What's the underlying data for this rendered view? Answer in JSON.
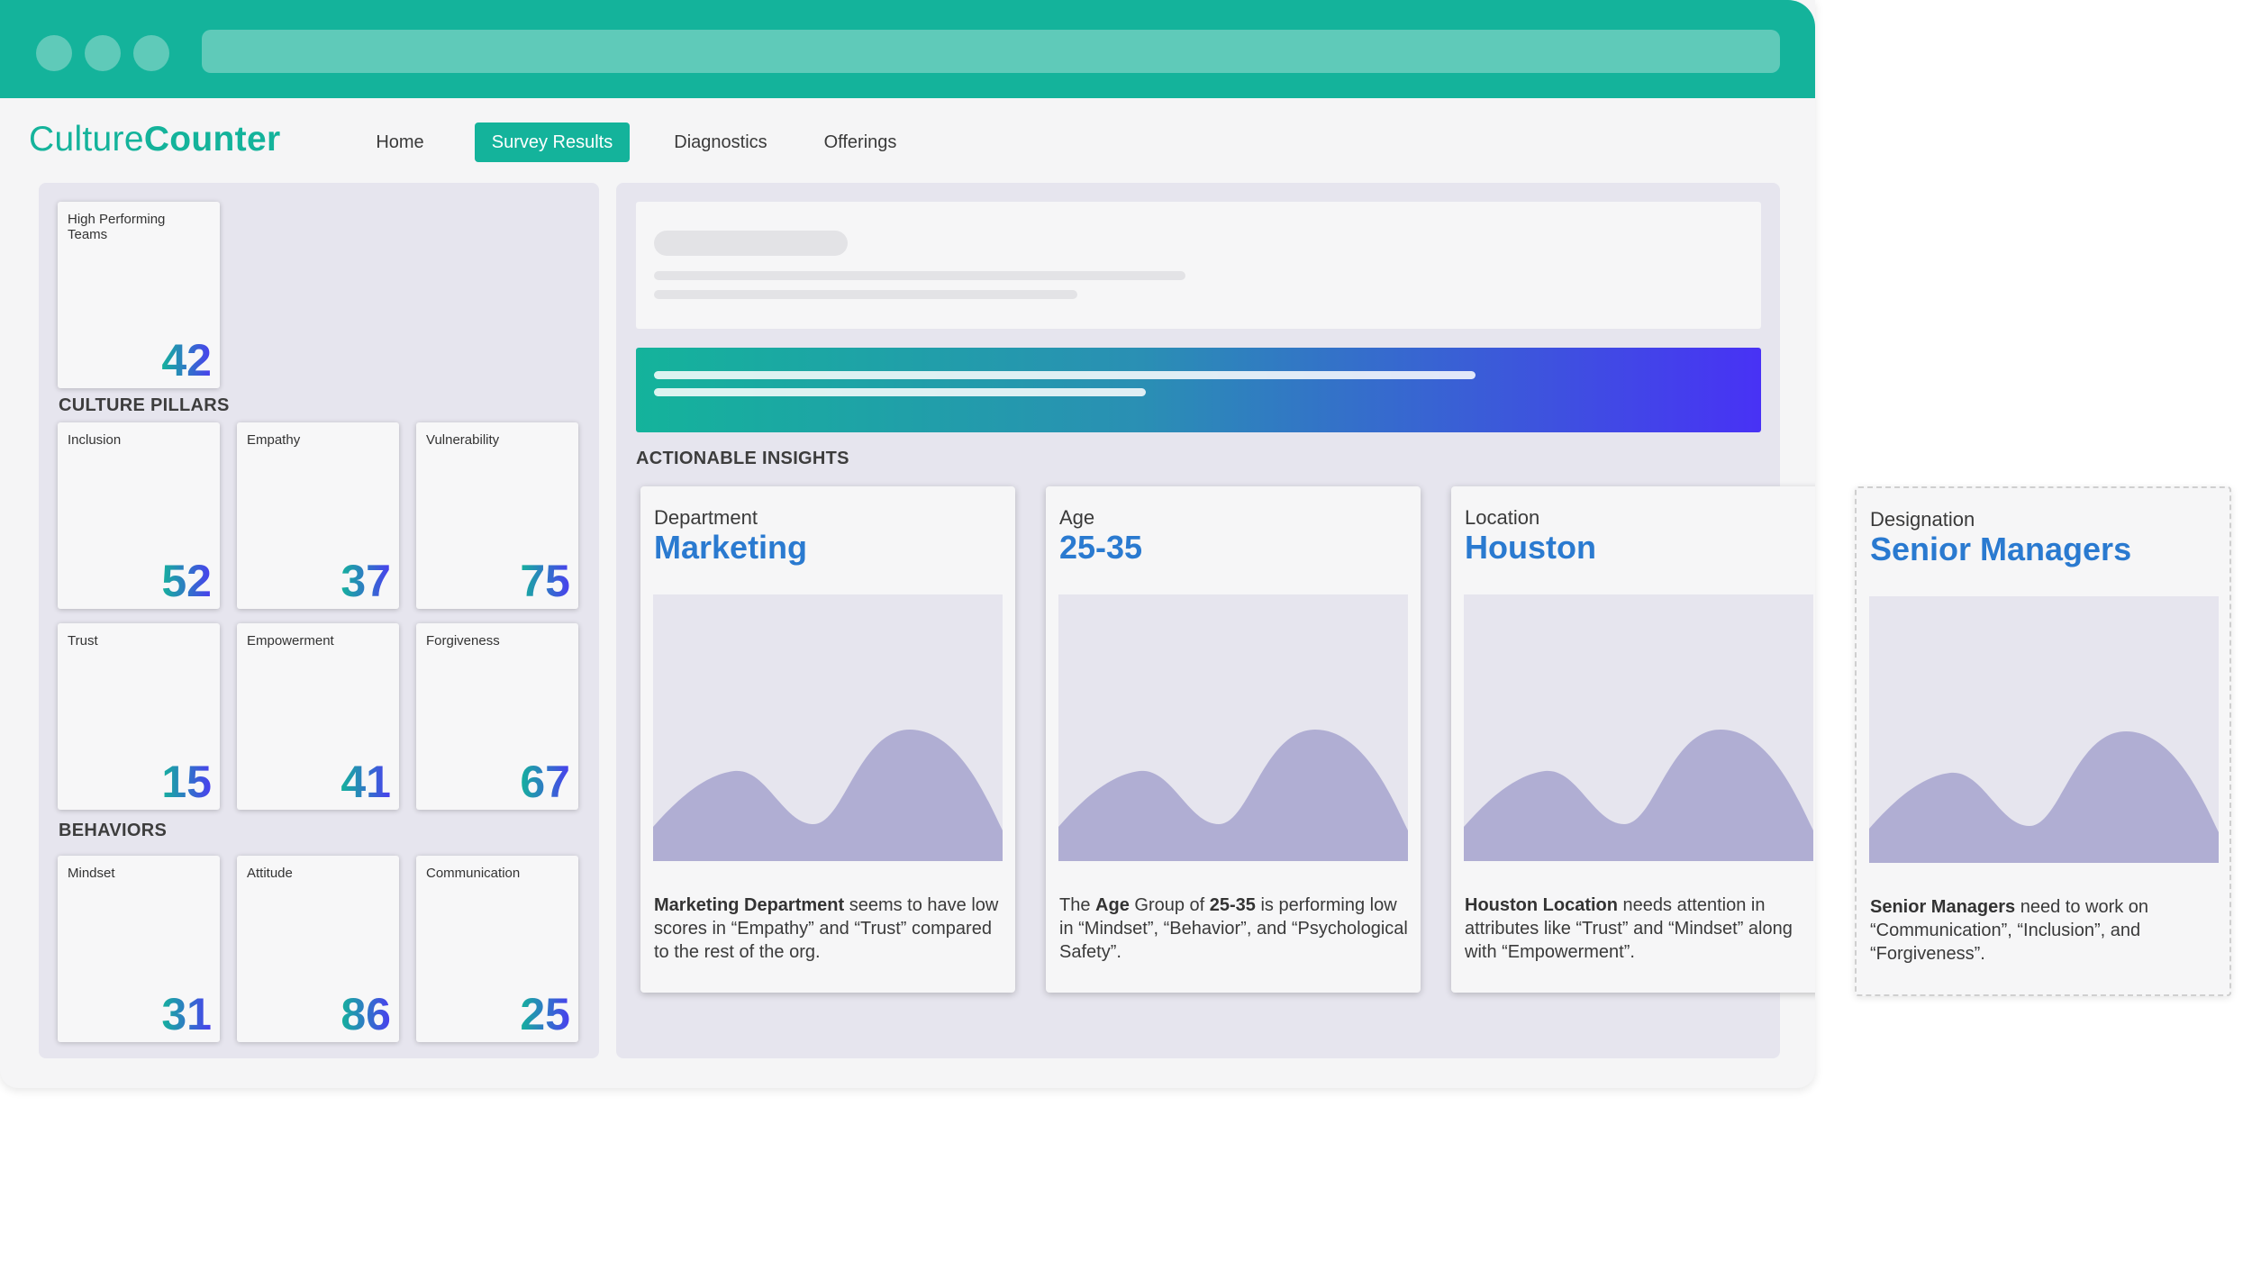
{
  "app": {
    "name_part1": "Culture",
    "name_part2": "Counter"
  },
  "nav": {
    "items": [
      "Home",
      "Survey Results",
      "Diagnostics",
      "Offerings"
    ],
    "active": "Survey Results"
  },
  "summary": {
    "label": "High Performing Teams",
    "value": "42"
  },
  "culture_pillars": {
    "title": "CULTURE PILLARS",
    "items": [
      {
        "label": "Inclusion",
        "value": "52"
      },
      {
        "label": "Empathy",
        "value": "37"
      },
      {
        "label": "Vulnerability",
        "value": "75"
      },
      {
        "label": "Trust",
        "value": "15"
      },
      {
        "label": "Empowerment",
        "value": "41"
      },
      {
        "label": "Forgiveness",
        "value": "67"
      }
    ]
  },
  "behaviors": {
    "title": "BEHAVIORS",
    "items": [
      {
        "label": "Mindset",
        "value": "31"
      },
      {
        "label": "Attitude",
        "value": "86"
      },
      {
        "label": "Communication",
        "value": "25"
      }
    ]
  },
  "insights": {
    "title": "ACTIONABLE INSIGHTS",
    "cards": [
      {
        "category": "Department",
        "name": "Marketing",
        "bold": "Marketing Department",
        "text": " seems to have low scores in “Empathy” and “Trust” compared to the rest of the org."
      },
      {
        "category": "Age",
        "name": "25-35",
        "pre": "The ",
        "bold": "Age",
        "mid": " Group of ",
        "bold2": "25-35",
        "text": " is performing low in “Mindset”, “Behavior”, and “Psychological Safety”."
      },
      {
        "category": "Location",
        "name": "Houston",
        "bold": "Houston Location",
        "text": " needs attention in attributes like “Trust” and “Mindset” along with “Empowerment”."
      },
      {
        "category": "Designation",
        "name": "Senior Managers",
        "bold": "Senior Managers",
        "text": " need to work on “Communication”, “Inclusion”, and “Forgiveness”."
      }
    ]
  },
  "colors": {
    "brand": "#14b39b",
    "accent": "#4a3df0",
    "chart_fill": "#b0aed3"
  }
}
